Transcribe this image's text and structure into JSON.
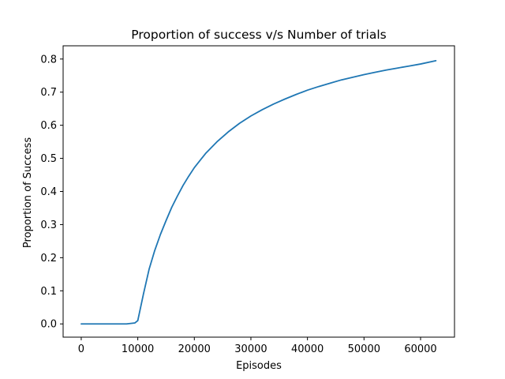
{
  "chart_data": {
    "type": "line",
    "title": "Proportion of success v/s Number of trials",
    "xlabel": "Episodes",
    "ylabel": "Proportion of Success",
    "xlim": [
      -3200,
      66000
    ],
    "ylim": [
      -0.04,
      0.84
    ],
    "xticks": [
      0,
      10000,
      20000,
      30000,
      40000,
      50000,
      60000
    ],
    "xtick_labels": [
      "0",
      "10000",
      "20000",
      "30000",
      "40000",
      "50000",
      "60000"
    ],
    "yticks": [
      0.0,
      0.1,
      0.2,
      0.3,
      0.4,
      0.5,
      0.6,
      0.7,
      0.8
    ],
    "ytick_labels": [
      "0.0",
      "0.1",
      "0.2",
      "0.3",
      "0.4",
      "0.5",
      "0.6",
      "0.7",
      "0.8"
    ],
    "grid": false,
    "series": [
      {
        "color": "#1f77b4",
        "x": [
          0,
          2000,
          4000,
          6000,
          8000,
          9500,
          10000,
          11000,
          12000,
          13000,
          14000,
          15000,
          16000,
          17000,
          18000,
          19000,
          20000,
          22000,
          24000,
          26000,
          28000,
          30000,
          32000,
          34000,
          36000,
          38000,
          40000,
          42000,
          44000,
          46000,
          48000,
          50000,
          52000,
          54000,
          56000,
          58000,
          60000,
          62700
        ],
        "y": [
          0.0,
          0.0,
          0.0,
          0.0,
          0.0,
          0.003,
          0.01,
          0.09,
          0.165,
          0.222,
          0.27,
          0.312,
          0.352,
          0.386,
          0.418,
          0.446,
          0.472,
          0.515,
          0.55,
          0.58,
          0.606,
          0.628,
          0.647,
          0.664,
          0.679,
          0.693,
          0.706,
          0.717,
          0.727,
          0.737,
          0.745,
          0.753,
          0.76,
          0.767,
          0.773,
          0.779,
          0.785,
          0.795
        ]
      }
    ]
  }
}
